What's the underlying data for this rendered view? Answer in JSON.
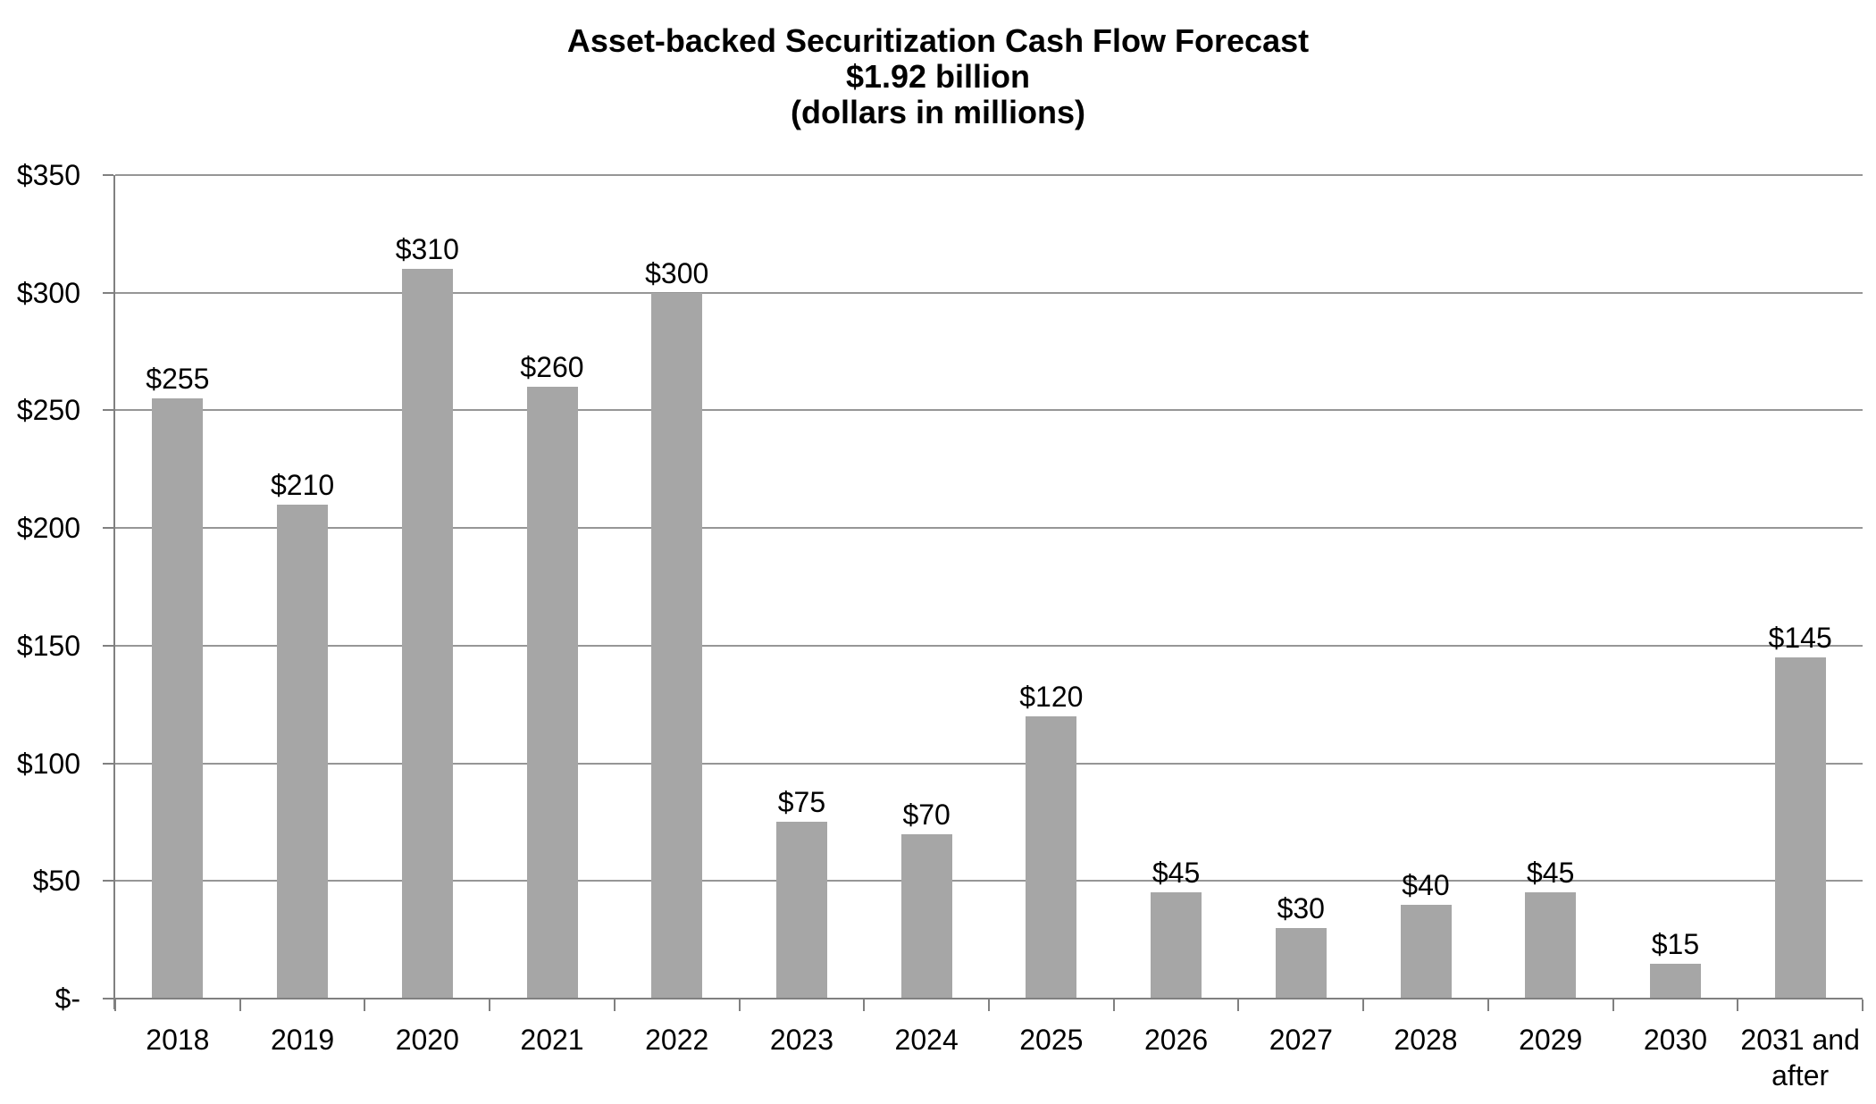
{
  "title": {
    "line1": "Asset-backed Securitization Cash Flow Forecast",
    "line2": "$1.92 billion",
    "line3": "(dollars in millions)"
  },
  "chart_data": {
    "type": "bar",
    "title": "Asset-backed Securitization Cash Flow Forecast",
    "subtitle": "$1.92 billion",
    "subtitle2": "(dollars in millions)",
    "categories": [
      "2018",
      "2019",
      "2020",
      "2021",
      "2022",
      "2023",
      "2024",
      "2025",
      "2026",
      "2027",
      "2028",
      "2029",
      "2030",
      "2031 and after"
    ],
    "values": [
      255,
      210,
      310,
      260,
      300,
      75,
      70,
      120,
      45,
      30,
      40,
      45,
      15,
      145
    ],
    "bar_labels": [
      "$255",
      "$210",
      "$310",
      "$260",
      "$300",
      "$75",
      "$70",
      "$120",
      "$45",
      "$30",
      "$40",
      "$45",
      "$15",
      "$145"
    ],
    "xlabel": "",
    "ylabel": "",
    "ylim": [
      0,
      350
    ],
    "yticks": [
      {
        "value": 350,
        "label": "$350"
      },
      {
        "value": 300,
        "label": "$300"
      },
      {
        "value": 250,
        "label": "$250"
      },
      {
        "value": 200,
        "label": "$200"
      },
      {
        "value": 150,
        "label": "$150"
      },
      {
        "value": 100,
        "label": "$100"
      },
      {
        "value": 50,
        "label": "$50"
      },
      {
        "value": 0,
        "label": "$-"
      }
    ],
    "grid": true,
    "legend": false,
    "colors": {
      "bar": "#a6a6a6",
      "gridline": "#969696",
      "axis": "#808080",
      "text": "#000000",
      "background": "#ffffff"
    }
  }
}
